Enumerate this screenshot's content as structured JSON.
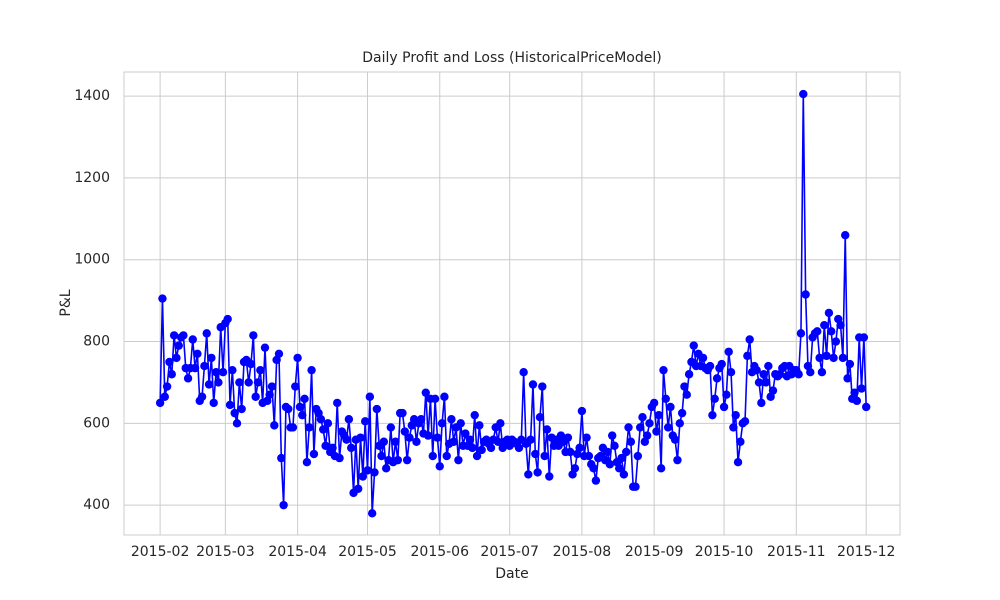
{
  "chart_data": {
    "type": "line",
    "title": "Daily Profit and Loss (HistoricalPriceModel)",
    "xlabel": "Date",
    "ylabel": "P&L",
    "x": [
      0,
      1,
      2,
      3,
      4,
      5,
      6,
      7,
      8,
      9,
      10,
      11,
      12,
      13,
      14,
      15,
      16,
      17,
      18,
      19,
      20,
      21,
      22,
      23,
      24,
      25,
      26,
      27,
      28,
      29,
      30,
      31,
      32,
      33,
      34,
      35,
      36,
      37,
      38,
      39,
      40,
      41,
      42,
      43,
      44,
      45,
      46,
      47,
      48,
      49,
      50,
      51,
      52,
      53,
      54,
      55,
      56,
      57,
      58,
      59,
      60,
      61,
      62,
      63,
      64,
      65,
      66,
      67,
      68,
      69,
      70,
      71,
      72,
      73,
      74,
      75,
      76,
      77,
      78,
      79,
      80,
      81,
      82,
      83,
      84,
      85,
      86,
      87,
      88,
      89,
      90,
      91,
      92,
      93,
      94,
      95,
      96,
      97,
      98,
      99,
      100,
      101,
      102,
      103,
      104,
      105,
      106,
      107,
      108,
      109,
      110,
      111,
      112,
      113,
      114,
      115,
      116,
      117,
      118,
      119,
      120,
      121,
      122,
      123,
      124,
      125,
      126,
      127,
      128,
      129,
      130,
      131,
      132,
      133,
      134,
      135,
      136,
      137,
      138,
      139,
      140,
      141,
      142,
      143,
      144,
      145,
      146,
      147,
      148,
      149,
      150,
      151,
      152,
      153,
      154,
      155,
      156,
      157,
      158,
      159,
      160,
      161,
      162,
      163,
      164,
      165,
      166,
      167,
      168,
      169,
      170,
      171,
      172,
      173,
      174,
      175,
      176,
      177,
      178,
      179,
      180,
      181,
      182,
      183,
      184,
      185,
      186,
      187,
      188,
      189,
      190,
      191,
      192,
      193,
      194,
      195,
      196,
      197,
      198,
      199,
      200,
      201,
      202,
      203,
      204,
      205,
      206,
      207,
      208,
      209,
      210,
      211,
      212,
      213,
      214,
      215,
      216,
      217,
      218,
      219,
      220,
      221,
      222,
      223,
      224,
      225,
      226,
      227,
      228,
      229,
      230,
      231,
      232,
      233,
      234,
      235,
      236,
      237,
      238,
      239,
      240,
      241,
      242,
      243,
      244,
      245,
      246,
      247,
      248,
      249,
      250,
      251,
      252,
      253,
      254,
      255,
      256,
      257,
      258,
      259,
      260,
      261,
      262,
      263,
      264,
      265,
      266,
      267,
      268,
      269,
      270,
      271,
      272,
      273,
      274,
      275,
      276,
      277,
      278,
      279,
      280,
      281,
      282,
      283,
      284,
      285,
      286,
      287,
      288,
      289,
      290,
      291,
      292,
      293,
      294,
      295,
      296,
      297,
      298,
      299,
      300,
      301,
      302,
      303
    ],
    "series": [
      {
        "name": "P&L",
        "color": "#0000ff",
        "values": [
          650,
          905,
          665,
          690,
          750,
          720,
          815,
          760,
          790,
          810,
          815,
          735,
          710,
          735,
          805,
          735,
          770,
          655,
          665,
          740,
          820,
          695,
          760,
          650,
          725,
          700,
          835,
          725,
          845,
          855,
          645,
          730,
          625,
          600,
          700,
          635,
          750,
          755,
          700,
          745,
          815,
          665,
          700,
          730,
          650,
          785,
          655,
          670,
          690,
          595,
          755,
          770,
          515,
          400,
          640,
          635,
          590,
          590,
          690,
          760,
          640,
          620,
          660,
          505,
          590,
          730,
          525,
          635,
          625,
          610,
          585,
          545,
          600,
          530,
          540,
          520,
          650,
          515,
          580,
          570,
          560,
          610,
          540,
          430,
          560,
          440,
          565,
          470,
          605,
          485,
          665,
          380,
          480,
          635,
          545,
          520,
          555,
          490,
          510,
          590,
          505,
          555,
          510,
          625,
          625,
          580,
          510,
          565,
          595,
          610,
          555,
          600,
          610,
          575,
          675,
          570,
          660,
          520,
          660,
          565,
          495,
          600,
          665,
          520,
          550,
          610,
          555,
          590,
          510,
          600,
          545,
          575,
          545,
          560,
          540,
          620,
          520,
          595,
          535,
          555,
          560,
          550,
          540,
          560,
          590,
          555,
          600,
          540,
          555,
          560,
          545,
          560,
          555,
          550,
          540,
          560,
          725,
          550,
          475,
          560,
          695,
          525,
          480,
          615,
          690,
          520,
          585,
          470,
          565,
          545,
          560,
          545,
          570,
          555,
          530,
          565,
          530,
          475,
          490,
          525,
          540,
          630,
          520,
          565,
          520,
          500,
          490,
          460,
          515,
          520,
          540,
          510,
          530,
          500,
          570,
          545,
          505,
          490,
          515,
          475,
          530,
          590,
          555,
          445,
          445,
          520,
          590,
          615,
          555,
          570,
          600,
          640,
          650,
          580,
          620,
          490,
          730,
          660,
          590,
          640,
          570,
          560,
          510,
          600,
          625,
          690,
          670,
          720,
          750,
          790,
          740,
          770,
          740,
          760,
          735,
          730,
          740,
          620,
          660,
          710,
          735,
          745,
          640,
          670,
          775,
          725,
          590,
          620,
          505,
          555,
          600,
          605,
          765,
          805,
          725,
          740,
          730,
          700,
          650,
          720,
          700,
          740,
          665,
          680,
          720,
          715,
          720,
          735,
          740,
          715,
          740,
          720,
          730,
          730,
          720,
          820,
          1405,
          915,
          740,
          725,
          810,
          820,
          825,
          760,
          725,
          840,
          765,
          870,
          825,
          760,
          800,
          855,
          840,
          760,
          1060,
          710,
          745,
          660,
          675,
          655,
          810,
          685,
          810,
          640
        ]
      }
    ],
    "xlim": [
      -15.5,
      317.5
    ],
    "xticks": [
      {
        "value": 0,
        "label": "2015-02"
      },
      {
        "value": 28,
        "label": "2015-03"
      },
      {
        "value": 59,
        "label": "2015-04"
      },
      {
        "value": 89,
        "label": "2015-05"
      },
      {
        "value": 120,
        "label": "2015-06"
      },
      {
        "value": 150,
        "label": "2015-07"
      },
      {
        "value": 181,
        "label": "2015-08"
      },
      {
        "value": 212,
        "label": "2015-09"
      },
      {
        "value": 242,
        "label": "2015-10"
      },
      {
        "value": 273,
        "label": "2015-11"
      },
      {
        "value": 303,
        "label": "2015-12"
      }
    ],
    "ylim": [
      327,
      1459
    ],
    "yticks": [
      400,
      600,
      800,
      1000,
      1200,
      1400
    ],
    "grid": true
  }
}
